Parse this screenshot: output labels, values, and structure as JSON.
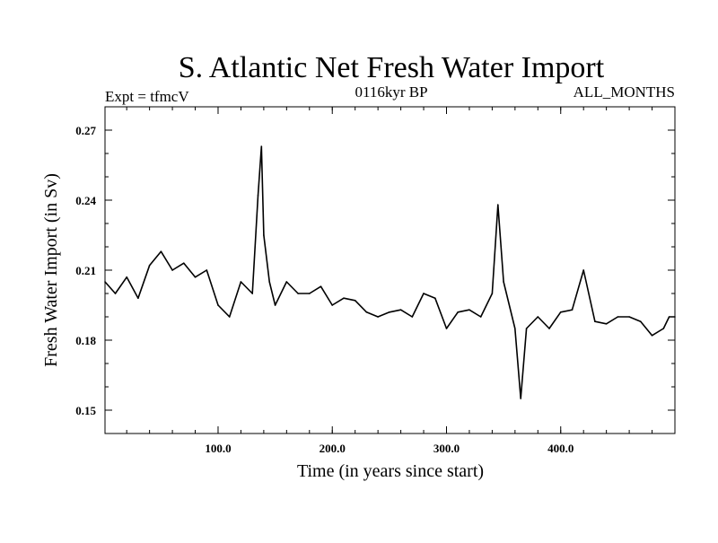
{
  "chart_data": {
    "type": "line",
    "title": "S. Atlantic Net Fresh Water Import",
    "subtitle_left": "Expt = tfmcV",
    "subtitle_center": "0116kyr BP",
    "subtitle_right": "ALL_MONTHS",
    "xlabel": "Time (in years since start)",
    "ylabel": "Fresh Water Import (in Sv)",
    "xlim": [
      1,
      500
    ],
    "ylim": [
      0.14,
      0.28
    ],
    "xticks": [
      100,
      200,
      300,
      400
    ],
    "xtick_labels": [
      "100.0",
      "200.0",
      "300.0",
      "400.0"
    ],
    "yticks": [
      0.15,
      0.18,
      0.21,
      0.24,
      0.27
    ],
    "ytick_labels": [
      "0.15",
      "0.18",
      "0.21",
      "0.24",
      "0.27"
    ],
    "grid": false,
    "line_color": "#000000",
    "series": [
      {
        "x": [
          1,
          10,
          20,
          30,
          40,
          50,
          60,
          70,
          80,
          90,
          100,
          110,
          120,
          130,
          135,
          138,
          140,
          145,
          150,
          160,
          170,
          180,
          190,
          200,
          210,
          220,
          230,
          240,
          250,
          260,
          270,
          280,
          290,
          300,
          310,
          320,
          330,
          340,
          345,
          350,
          360,
          365,
          370,
          380,
          390,
          400,
          410,
          420,
          430,
          440,
          450,
          460,
          470,
          480,
          490,
          495,
          500
        ],
        "values": [
          0.205,
          0.2,
          0.207,
          0.198,
          0.212,
          0.218,
          0.21,
          0.213,
          0.207,
          0.21,
          0.195,
          0.19,
          0.205,
          0.2,
          0.242,
          0.263,
          0.225,
          0.205,
          0.195,
          0.205,
          0.2,
          0.2,
          0.203,
          0.195,
          0.198,
          0.197,
          0.192,
          0.19,
          0.192,
          0.193,
          0.19,
          0.2,
          0.198,
          0.185,
          0.192,
          0.193,
          0.19,
          0.2,
          0.238,
          0.205,
          0.185,
          0.155,
          0.185,
          0.19,
          0.185,
          0.192,
          0.193,
          0.21,
          0.188,
          0.187,
          0.19,
          0.19,
          0.188,
          0.182,
          0.185,
          0.19,
          0.19
        ]
      }
    ]
  }
}
